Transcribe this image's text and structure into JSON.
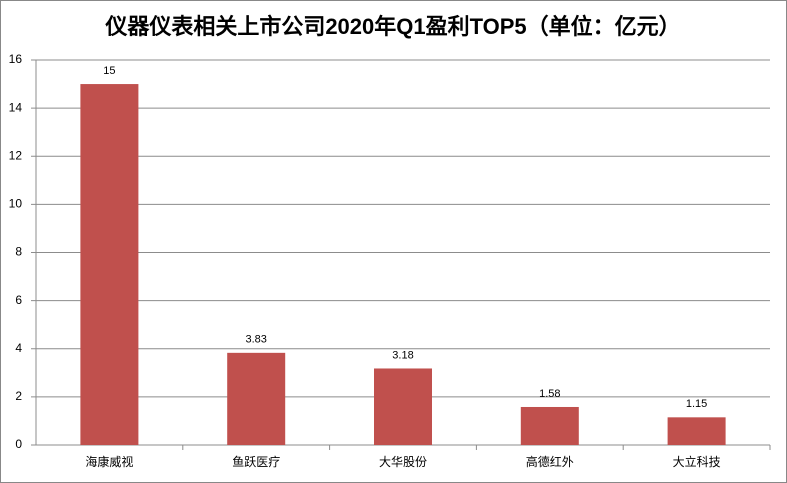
{
  "chart_data": {
    "type": "bar",
    "title": "仪器仪表相关上市公司2020年Q1盈利TOP5（单位：亿元）",
    "categories": [
      "海康威视",
      "鱼跃医疗",
      "大华股份",
      "高德红外",
      "大立科技"
    ],
    "values": [
      15,
      3.83,
      3.18,
      1.58,
      1.15
    ],
    "color": "#c0504d",
    "ylim": [
      0,
      16
    ],
    "yticks": [
      0,
      2,
      4,
      6,
      8,
      10,
      12,
      14,
      16
    ],
    "grid": true
  }
}
